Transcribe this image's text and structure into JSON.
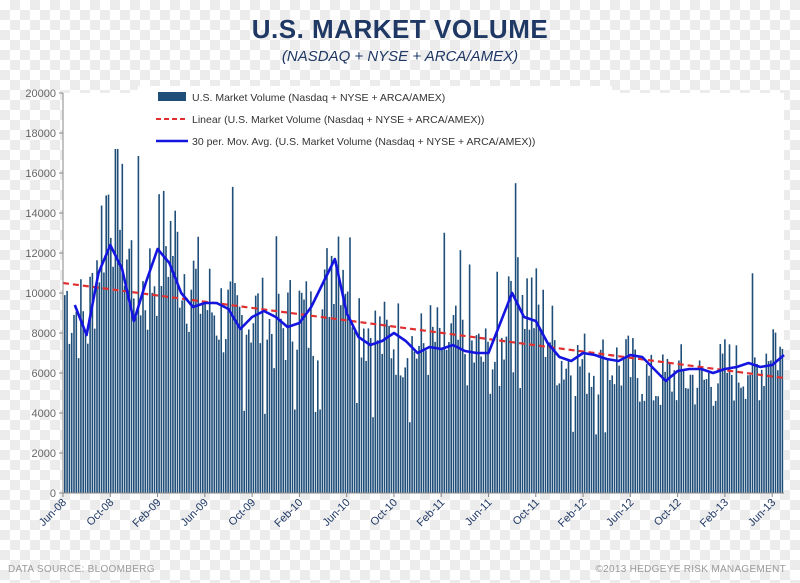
{
  "header": {
    "title": "U.S. MARKET VOLUME",
    "subtitle": "(NASDAQ + NYSE + ARCA/AMEX)"
  },
  "footer": {
    "source": "DATA SOURCE: BLOOMBERG",
    "copyright": "©2013 HEDGEYE RISK MANAGEMENT"
  },
  "colors": {
    "bars": "#1f4e79",
    "linear": "#e03030",
    "moving_avg": "#1515e0",
    "title": "#1f3864"
  },
  "chart_data": {
    "type": "bar",
    "title": "U.S. MARKET VOLUME",
    "subtitle": "(NASDAQ + NYSE + ARCA/AMEX)",
    "ylim": [
      0,
      20000
    ],
    "yticks": [
      0,
      2000,
      4000,
      6000,
      8000,
      10000,
      12000,
      14000,
      16000,
      18000,
      20000
    ],
    "xticks": [
      "Jun-08",
      "Oct-08",
      "Feb-09",
      "Jun-09",
      "Oct-09",
      "Feb-10",
      "Jun-10",
      "Oct-10",
      "Feb-11",
      "Jun-11",
      "Oct-11",
      "Feb-12",
      "Jun-12",
      "Oct-12",
      "Feb-13",
      "Jun-13"
    ],
    "x_range": [
      "2008-06",
      "2013-07"
    ],
    "legend_position": "top",
    "grid": false,
    "series": [
      {
        "name": "U.S. Market Volume (Nasdaq + NYSE + ARCA/AMEX)",
        "kind": "bar",
        "x": [
          "2008-06",
          "2008-07",
          "2008-08",
          "2008-09",
          "2008-10",
          "2008-11",
          "2008-12",
          "2009-01",
          "2009-02",
          "2009-03",
          "2009-04",
          "2009-05",
          "2009-06",
          "2009-07",
          "2009-08",
          "2009-09",
          "2009-10",
          "2009-11",
          "2009-12",
          "2010-01",
          "2010-02",
          "2010-03",
          "2010-04",
          "2010-05",
          "2010-06",
          "2010-07",
          "2010-08",
          "2010-09",
          "2010-10",
          "2010-11",
          "2010-12",
          "2011-01",
          "2011-02",
          "2011-03",
          "2011-04",
          "2011-05",
          "2011-06",
          "2011-07",
          "2011-08",
          "2011-09",
          "2011-10",
          "2011-11",
          "2011-12",
          "2012-01",
          "2012-02",
          "2012-03",
          "2012-04",
          "2012-05",
          "2012-06",
          "2012-07",
          "2012-08",
          "2012-09",
          "2012-10",
          "2012-11",
          "2012-12",
          "2013-01",
          "2013-02",
          "2013-03",
          "2013-04",
          "2013-05",
          "2013-06",
          "2013-07"
        ],
        "values": [
          10500,
          9500,
          8800,
          13000,
          16500,
          13500,
          11500,
          10500,
          12500,
          13500,
          12000,
          11000,
          10000,
          9500,
          9200,
          9000,
          9500,
          8800,
          8500,
          9000,
          9500,
          8800,
          9500,
          14000,
          12000,
          9500,
          8500,
          8000,
          8200,
          8000,
          7500,
          8000,
          7800,
          8000,
          7500,
          7200,
          7000,
          7000,
          13500,
          10500,
          9500,
          8500,
          7000,
          6800,
          6800,
          6500,
          6800,
          6700,
          6500,
          6200,
          5500,
          6000,
          6200,
          6000,
          5800,
          6000,
          6500,
          6300,
          6800,
          6500,
          8500,
          6500
        ]
      },
      {
        "name": "Linear (U.S. Market Volume (Nasdaq + NYSE + ARCA/AMEX))",
        "kind": "trend",
        "x": [
          "2008-06",
          "2013-07"
        ],
        "values": [
          10500,
          5750
        ]
      },
      {
        "name": "30 per. Mov. Avg. (U.S. Market Volume (Nasdaq + NYSE + ARCA/AMEX))",
        "kind": "line",
        "x": [
          "2008-07",
          "2008-08",
          "2008-09",
          "2008-10",
          "2008-11",
          "2008-12",
          "2009-01",
          "2009-02",
          "2009-03",
          "2009-04",
          "2009-05",
          "2009-06",
          "2009-07",
          "2009-08",
          "2009-09",
          "2009-10",
          "2009-11",
          "2009-12",
          "2010-01",
          "2010-02",
          "2010-03",
          "2010-04",
          "2010-05",
          "2010-06",
          "2010-07",
          "2010-08",
          "2010-09",
          "2010-10",
          "2010-11",
          "2010-12",
          "2011-01",
          "2011-02",
          "2011-03",
          "2011-04",
          "2011-05",
          "2011-06",
          "2011-07",
          "2011-08",
          "2011-09",
          "2011-10",
          "2011-11",
          "2011-12",
          "2012-01",
          "2012-02",
          "2012-03",
          "2012-04",
          "2012-05",
          "2012-06",
          "2012-07",
          "2012-08",
          "2012-09",
          "2012-10",
          "2012-11",
          "2012-12",
          "2013-01",
          "2013-02",
          "2013-03",
          "2013-04",
          "2013-05",
          "2013-06",
          "2013-07"
        ],
        "values": [
          9400,
          7900,
          11000,
          12400,
          11200,
          8600,
          10500,
          12200,
          11500,
          10000,
          9300,
          9500,
          9500,
          9200,
          8200,
          8800,
          9100,
          8800,
          8300,
          8500,
          9300,
          10500,
          11700,
          9000,
          7800,
          7400,
          7600,
          8000,
          7600,
          7000,
          7300,
          7200,
          7400,
          7100,
          7000,
          7000,
          8500,
          10000,
          8800,
          8600,
          7500,
          6800,
          6600,
          7000,
          6900,
          6700,
          6600,
          6900,
          6800,
          6200,
          5600,
          6100,
          6200,
          6200,
          6000,
          6200,
          6300,
          6500,
          6300,
          6400,
          6900
        ]
      }
    ]
  }
}
